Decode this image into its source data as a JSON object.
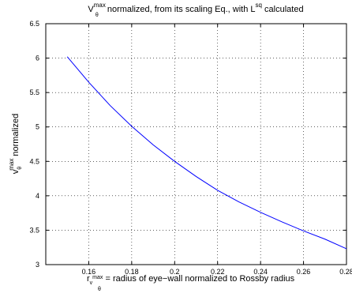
{
  "chart_data": {
    "type": "line",
    "title": {
      "base": "V",
      "sup": "max",
      "sub": "θ",
      "rest": " normalized, from its scaling Eq., with L",
      "sup2": "sq",
      "rest2": " calculated"
    },
    "xlabel": {
      "base": "r",
      "sub": "v",
      "subsub": "θ",
      "subsup": "max",
      "rest": " = radius of eye−wall normalized to Rossby radius"
    },
    "ylabel": {
      "base": "v",
      "sub": "θ",
      "sup": "max",
      "rest": " normalized"
    },
    "xlim": [
      0.14,
      0.28
    ],
    "ylim": [
      3,
      6.5
    ],
    "xticks": [
      0.16,
      0.18,
      0.2,
      0.22,
      0.24,
      0.26,
      0.28
    ],
    "xtick_labels": [
      "0.16",
      "0.18",
      "0.2",
      "0.22",
      "0.24",
      "0.26",
      "0.28"
    ],
    "yticks": [
      3,
      3.5,
      4,
      4.5,
      5,
      5.5,
      6,
      6.5
    ],
    "ytick_labels": [
      "3",
      "3.5",
      "4",
      "4.5",
      "5",
      "5.5",
      "6",
      "6.5"
    ],
    "grid": true,
    "series": [
      {
        "color": "#0000ff",
        "x": [
          0.15,
          0.16,
          0.17,
          0.18,
          0.19,
          0.2,
          0.21,
          0.22,
          0.23,
          0.24,
          0.25,
          0.26,
          0.27,
          0.28
        ],
        "y": [
          6.02,
          5.65,
          5.31,
          5.01,
          4.74,
          4.5,
          4.28,
          4.08,
          3.91,
          3.76,
          3.62,
          3.49,
          3.37,
          3.23
        ]
      }
    ]
  }
}
